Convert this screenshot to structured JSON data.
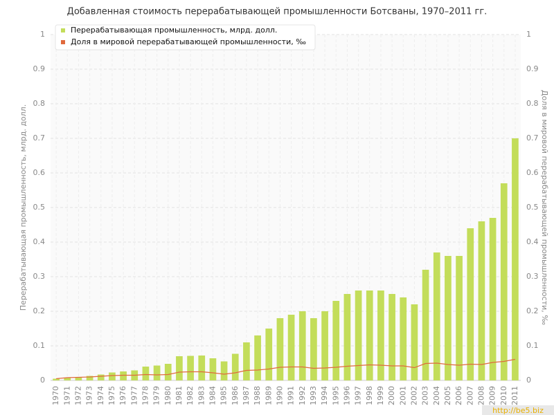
{
  "chart_data": {
    "type": "bar",
    "title": "Добавленная стоимость перерабатывающей промышленности Ботсваны, 1970–2011 гг.",
    "y_label": "Перерабатывающая промышленность, млрд. долл.",
    "y2_label": "Доля в мировой перерабатывающей промышленности, ‰",
    "watermark": "http://be5.biz",
    "categories": [
      "1970",
      "1971",
      "1972",
      "1973",
      "1974",
      "1975",
      "1976",
      "1977",
      "1978",
      "1979",
      "1980",
      "1981",
      "1982",
      "1983",
      "1984",
      "1985",
      "1986",
      "1987",
      "1988",
      "1989",
      "1990",
      "1991",
      "1992",
      "1993",
      "1994",
      "1995",
      "1996",
      "1997",
      "1998",
      "1999",
      "2000",
      "2001",
      "2002",
      "2003",
      "2004",
      "2005",
      "2006",
      "2007",
      "2008",
      "2009",
      "2010",
      "2011"
    ],
    "series": [
      {
        "name": "Перерабатывающая промышленность, млрд. долл.",
        "type": "bar",
        "color": "#c3dd5a",
        "values": [
          0.005,
          0.008,
          0.01,
          0.013,
          0.017,
          0.023,
          0.026,
          0.029,
          0.04,
          0.043,
          0.048,
          0.07,
          0.071,
          0.072,
          0.064,
          0.055,
          0.077,
          0.11,
          0.13,
          0.15,
          0.18,
          0.19,
          0.2,
          0.18,
          0.2,
          0.23,
          0.25,
          0.26,
          0.26,
          0.26,
          0.25,
          0.24,
          0.22,
          0.32,
          0.37,
          0.36,
          0.36,
          0.44,
          0.46,
          0.47,
          0.57,
          0.7
        ]
      },
      {
        "name": "Доля в мировой перерабатывающей промышленности, ‰",
        "type": "line",
        "axis": "y2",
        "color": "#e0693c",
        "values": [
          0.005,
          0.008,
          0.009,
          0.01,
          0.012,
          0.014,
          0.015,
          0.015,
          0.017,
          0.016,
          0.017,
          0.024,
          0.025,
          0.025,
          0.022,
          0.018,
          0.022,
          0.029,
          0.03,
          0.033,
          0.038,
          0.039,
          0.039,
          0.035,
          0.036,
          0.038,
          0.041,
          0.043,
          0.045,
          0.044,
          0.042,
          0.042,
          0.037,
          0.049,
          0.05,
          0.046,
          0.044,
          0.047,
          0.046,
          0.052,
          0.055,
          0.061
        ]
      }
    ],
    "ylim": [
      0,
      1
    ],
    "yticks": [
      0,
      0.1,
      0.2,
      0.3,
      0.4,
      0.5,
      0.6,
      0.7,
      0.8,
      0.9,
      1
    ],
    "y2lim": [
      0,
      1
    ],
    "y2ticks": [
      0,
      0.1,
      0.2,
      0.3,
      0.4,
      0.5,
      0.6,
      0.7,
      0.8,
      0.9,
      1
    ],
    "grid": true,
    "legend": "top-left"
  }
}
